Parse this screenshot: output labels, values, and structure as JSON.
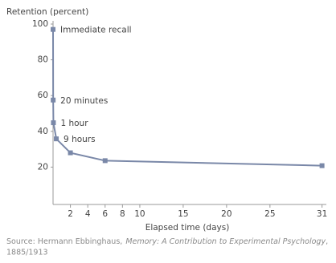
{
  "chart_data": {
    "type": "line",
    "y_label": "Retention (percent)",
    "x_label": "Elapsed time (days)",
    "x": [
      0,
      0.0139,
      0.0417,
      0.375,
      2,
      6,
      31
    ],
    "series": [
      {
        "color": "#7a88a8",
        "values": [
          97,
          57.5,
          44.8,
          35.8,
          28,
          23.6,
          20.8
        ]
      }
    ],
    "point_labels": [
      "Immediate recall",
      "20 minutes",
      "1 hour",
      "9 hours",
      null,
      null,
      null
    ],
    "xlim": [
      0,
      31.5
    ],
    "xticks": [
      2,
      4,
      6,
      8,
      10,
      15,
      20,
      25,
      31
    ],
    "ylim": [
      0,
      100
    ],
    "yticks": [
      20,
      40,
      60,
      80,
      100
    ],
    "source": {
      "prefix": "Source: Hermann Ebbinghaus,",
      "book": "Memory: A Contribution to Experimental Psychology",
      "punct": ",",
      "year": "1885/1913"
    }
  }
}
